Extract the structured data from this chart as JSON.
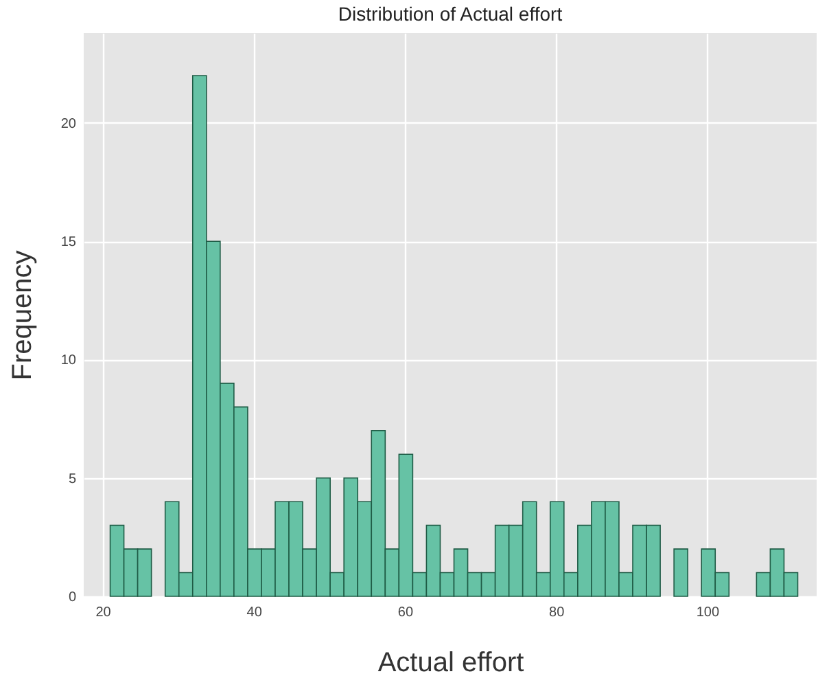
{
  "chart_data": {
    "type": "histogram",
    "title": "Distribution of Actual effort",
    "xlabel": "Actual effort",
    "ylabel": "Frequency",
    "bins": [
      21,
      22.82,
      24.64,
      26.46,
      28.28,
      30.1,
      31.92,
      33.74,
      35.56,
      37.38,
      39.2,
      41.02,
      42.84,
      44.66,
      46.48,
      48.3,
      50.12,
      51.94,
      53.76,
      55.58,
      57.4,
      59.22,
      61.04,
      62.86,
      64.68,
      66.5,
      68.32,
      70.14,
      71.96,
      73.78,
      75.6,
      77.42,
      79.24,
      81.06,
      82.88,
      84.7,
      86.52,
      88.34,
      90.16,
      91.98,
      93.8,
      95.62,
      97.44,
      99.26,
      101.08,
      102.9,
      104.72,
      106.54,
      108.36,
      110.18,
      112
    ],
    "values": [
      3,
      2,
      2,
      0,
      4,
      1,
      22,
      15,
      9,
      8,
      2,
      2,
      4,
      4,
      2,
      5,
      1,
      5,
      4,
      7,
      2,
      6,
      1,
      3,
      1,
      2,
      1,
      1,
      3,
      3,
      4,
      1,
      4,
      1,
      3,
      4,
      4,
      1,
      3,
      3,
      0,
      2,
      0,
      2,
      1,
      0,
      0,
      1,
      2,
      1
    ],
    "color": "#66c2a5",
    "xlim": [
      17.5,
      114.5
    ],
    "xticks": [
      20,
      40,
      60,
      80,
      100
    ],
    "ylim": [
      0,
      23.8
    ],
    "yticks": [
      0,
      5,
      10,
      15,
      20
    ],
    "grid": true
  }
}
